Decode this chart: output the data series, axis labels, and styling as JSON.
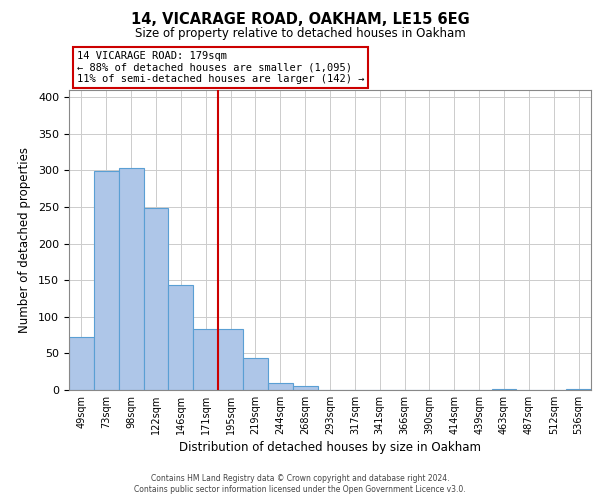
{
  "title": "14, VICARAGE ROAD, OAKHAM, LE15 6EG",
  "subtitle": "Size of property relative to detached houses in Oakham",
  "xlabel": "Distribution of detached houses by size in Oakham",
  "ylabel": "Number of detached properties",
  "footer_line1": "Contains HM Land Registry data © Crown copyright and database right 2024.",
  "footer_line2": "Contains public sector information licensed under the Open Government Licence v3.0.",
  "categories": [
    "49sqm",
    "73sqm",
    "98sqm",
    "122sqm",
    "146sqm",
    "171sqm",
    "195sqm",
    "219sqm",
    "244sqm",
    "268sqm",
    "293sqm",
    "317sqm",
    "341sqm",
    "366sqm",
    "390sqm",
    "414sqm",
    "439sqm",
    "463sqm",
    "487sqm",
    "512sqm",
    "536sqm"
  ],
  "values": [
    73,
    299,
    304,
    249,
    144,
    83,
    83,
    44,
    10,
    5,
    0,
    0,
    0,
    0,
    0,
    0,
    0,
    2,
    0,
    0,
    2
  ],
  "bar_color": "#aec6e8",
  "bar_edge_color": "#5a9fd4",
  "vline_x": 5.5,
  "vline_color": "#cc0000",
  "annotation_title": "14 VICARAGE ROAD: 179sqm",
  "annotation_line1": "← 88% of detached houses are smaller (1,095)",
  "annotation_line2": "11% of semi-detached houses are larger (142) →",
  "annotation_box_edge": "#cc0000",
  "ylim": [
    0,
    410
  ],
  "yticks": [
    0,
    50,
    100,
    150,
    200,
    250,
    300,
    350,
    400
  ],
  "background_color": "#ffffff",
  "grid_color": "#cccccc"
}
